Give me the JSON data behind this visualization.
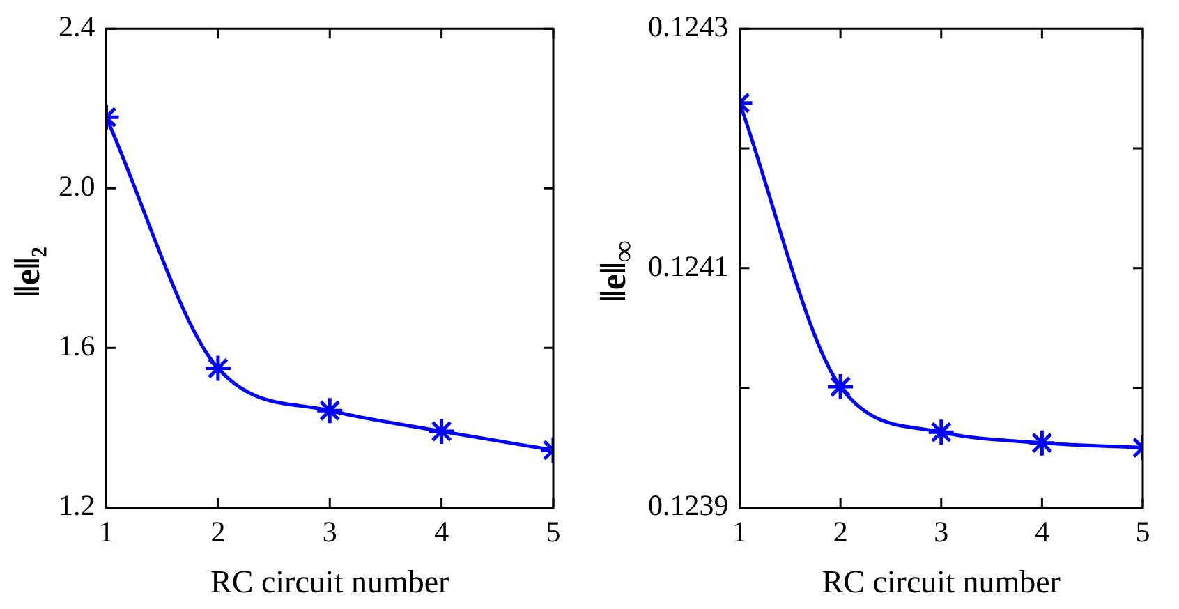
{
  "chart_data": [
    {
      "type": "line",
      "xlabel": "RC circuit number",
      "ylabel": "‖e‖₂",
      "x": [
        1,
        2,
        3,
        4,
        5
      ],
      "series": [
        {
          "color": "#0000ff",
          "values": [
            2.178,
            1.549,
            1.443,
            1.391,
            1.344
          ]
        }
      ],
      "xlim": [
        1,
        5
      ],
      "xticks": [
        1,
        2,
        3,
        4,
        5
      ],
      "ylim": [
        1.2,
        2.4
      ],
      "yticks": [
        "1.2",
        1.6,
        "2.0",
        2.4
      ],
      "marker": "cross",
      "line_style": "solid",
      "grid": false,
      "legend": false
    },
    {
      "type": "line",
      "xlabel": "RC circuit number",
      "ylabel": "‖e‖$_{∞}$",
      "x": [
        1,
        2,
        3,
        4,
        5
      ],
      "series": [
        {
          "color": "#0000ff",
          "values": [
            0.124238,
            0.124001,
            0.123963,
            0.123954,
            0.12395
          ]
        }
      ],
      "xlim": [
        1,
        5
      ],
      "xticks": [
        1,
        2,
        3,
        4,
        5
      ],
      "ylim": [
        0.1239,
        0.1243
      ],
      "yticks": [
        0.1239,
        {
          "value": 0.124,
          "label": null
        },
        0.1241,
        {
          "value": 0.1242,
          "label": null
        },
        0.1243
      ],
      "marker": "cross",
      "line_style": "solid",
      "grid": false,
      "legend": false
    }
  ]
}
